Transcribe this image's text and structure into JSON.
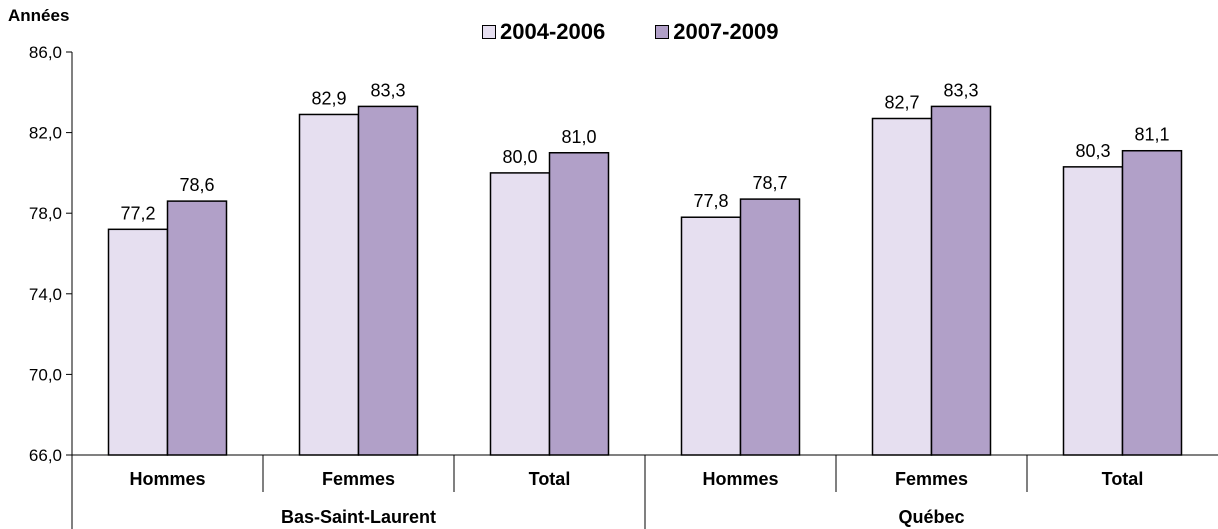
{
  "chart_data": {
    "type": "bar",
    "ylabel": "Années",
    "ylim": [
      66,
      86
    ],
    "yticks": [
      66,
      70,
      74,
      78,
      82,
      86
    ],
    "ytick_labels": [
      "66,0",
      "70,0",
      "74,0",
      "78,0",
      "82,0",
      "86,0"
    ],
    "groups": [
      "Bas-Saint-Laurent",
      "Québec"
    ],
    "categories": [
      "Hommes",
      "Femmes",
      "Total",
      "Hommes",
      "Femmes",
      "Total"
    ],
    "series": [
      {
        "name": "2004-2006",
        "color": "#E6DFF0",
        "values": [
          77.2,
          82.9,
          80.0,
          77.8,
          82.7,
          80.3
        ],
        "labels": [
          "77,2",
          "82,9",
          "80,0",
          "77,8",
          "82,7",
          "80,3"
        ]
      },
      {
        "name": "2007-2009",
        "color": "#B1A0C8",
        "values": [
          78.6,
          83.3,
          81.0,
          78.7,
          83.3,
          81.1
        ],
        "labels": [
          "78,6",
          "83,3",
          "81,0",
          "78,7",
          "83,3",
          "81,1"
        ]
      }
    ],
    "grid": false,
    "legend_position": "top"
  }
}
